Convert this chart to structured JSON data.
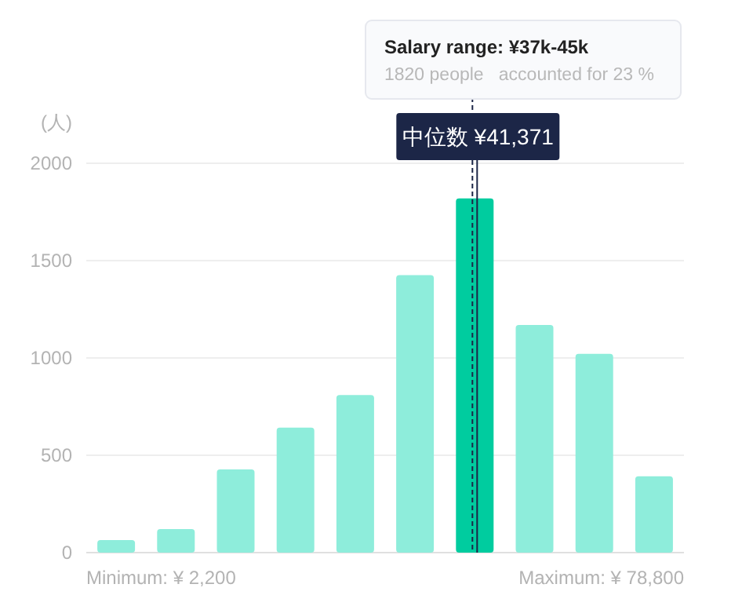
{
  "chart_data": {
    "type": "bar",
    "ylabel": "(人)",
    "categories": [
      null,
      null,
      null,
      null,
      null,
      null,
      null,
      null,
      null,
      null
    ],
    "values": [
      65,
      121,
      427,
      642,
      809,
      1425,
      1820,
      1169,
      1021,
      392
    ],
    "colors": [
      "#8eeddb",
      "#8eeddb",
      "#8eeddb",
      "#8eeddb",
      "#8eeddb",
      "#8eeddb",
      "#00cc9f",
      "#8eeddb",
      "#8eeddb",
      "#8eeddb"
    ],
    "ylim": [
      0,
      2000
    ],
    "yticks": [
      0,
      500,
      1000,
      1500,
      2000
    ],
    "grid": "y",
    "annotations": [
      "Salary range: ¥37k-45k",
      "1820 people   accounted for 23 %",
      "中位数 ¥41,371",
      "Minimum: ¥ 2,200",
      "Maximum: ¥ 78,800"
    ]
  }
}
